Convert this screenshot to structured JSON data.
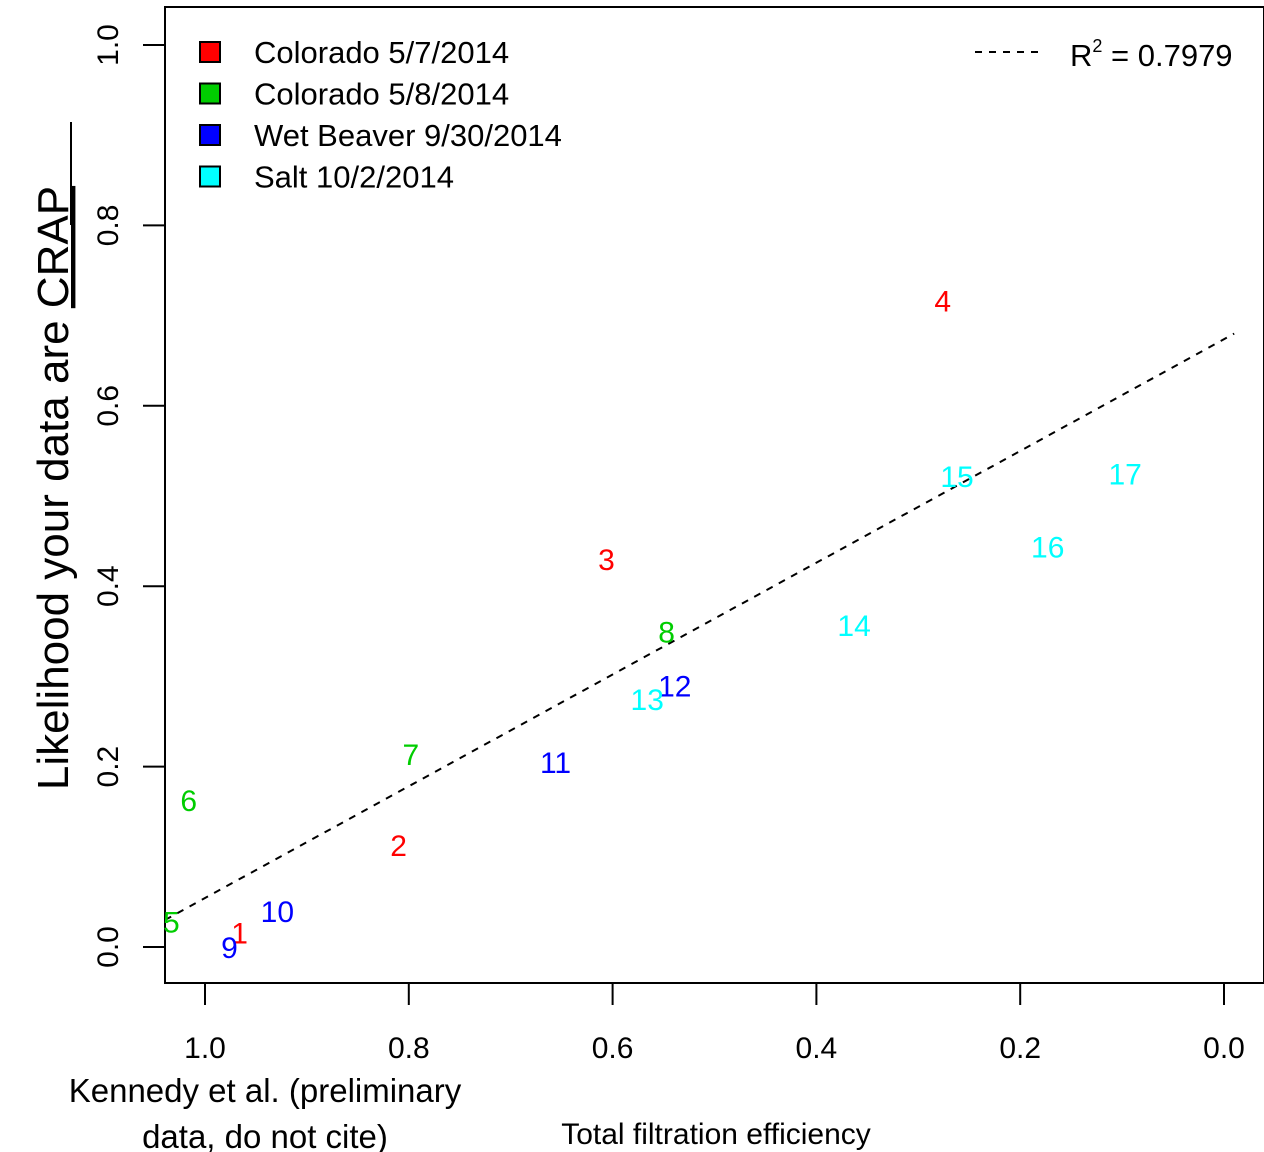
{
  "chart_data": {
    "type": "scatter",
    "xlabel": "Total filtration efficiency",
    "ylabel_prefix": "Likelihood your data are ",
    "ylabel_underlined": "CRAP",
    "xlim": [
      1.04,
      -0.01
    ],
    "ylim": [
      -0.04,
      1.04
    ],
    "x_reversed": true,
    "x_ticks": [
      1.0,
      0.8,
      0.6,
      0.4,
      0.2,
      0.0
    ],
    "x_tick_labels": [
      "1.0",
      "0.8",
      "0.6",
      "0.4",
      "0.2",
      "0.0"
    ],
    "y_ticks": [
      0.0,
      0.2,
      0.4,
      0.6,
      0.8,
      1.0
    ],
    "y_tick_labels": [
      "0.0",
      "0.2",
      "0.4",
      "0.6",
      "0.8",
      "1.0"
    ],
    "grid": false,
    "legend_position": "top-left",
    "series": [
      {
        "name": "Colorado 5/7/2014",
        "color": "#ff0000",
        "points": [
          {
            "label": "1",
            "x": 0.966,
            "y": 0.016
          },
          {
            "label": "2",
            "x": 0.81,
            "y": 0.113
          },
          {
            "label": "3",
            "x": 0.606,
            "y": 0.43
          },
          {
            "label": "4",
            "x": 0.276,
            "y": 0.717
          }
        ]
      },
      {
        "name": "Colorado 5/8/2014",
        "color": "#00cd00",
        "points": [
          {
            "label": "5",
            "x": 1.033,
            "y": 0.028
          },
          {
            "label": "6",
            "x": 1.016,
            "y": 0.163
          },
          {
            "label": "7",
            "x": 0.798,
            "y": 0.214
          },
          {
            "label": "8",
            "x": 0.547,
            "y": 0.35
          }
        ]
      },
      {
        "name": "Wet Beaver 9/30/2014",
        "color": "#0000ff",
        "points": [
          {
            "label": "9",
            "x": 0.976,
            "y": 0.0
          },
          {
            "label": "10",
            "x": 0.929,
            "y": 0.04
          },
          {
            "label": "11",
            "x": 0.656,
            "y": 0.205
          },
          {
            "label": "12",
            "x": 0.539,
            "y": 0.29
          }
        ]
      },
      {
        "name": "Salt 10/2/2014",
        "color": "#00ffff",
        "points": [
          {
            "label": "13",
            "x": 0.566,
            "y": 0.275
          },
          {
            "label": "14",
            "x": 0.363,
            "y": 0.357
          },
          {
            "label": "15",
            "x": 0.262,
            "y": 0.522
          },
          {
            "label": "16",
            "x": 0.173,
            "y": 0.444
          },
          {
            "label": "17",
            "x": 0.097,
            "y": 0.525
          }
        ]
      }
    ],
    "fit_line": {
      "label": "R",
      "superscript": "2",
      "value_text": " = 0.7979",
      "x": [
        1.04,
        -0.01
      ],
      "y": [
        0.03,
        0.68
      ]
    },
    "annotation": [
      "Kennedy et al. (preliminary",
      "data, do not cite)"
    ]
  }
}
